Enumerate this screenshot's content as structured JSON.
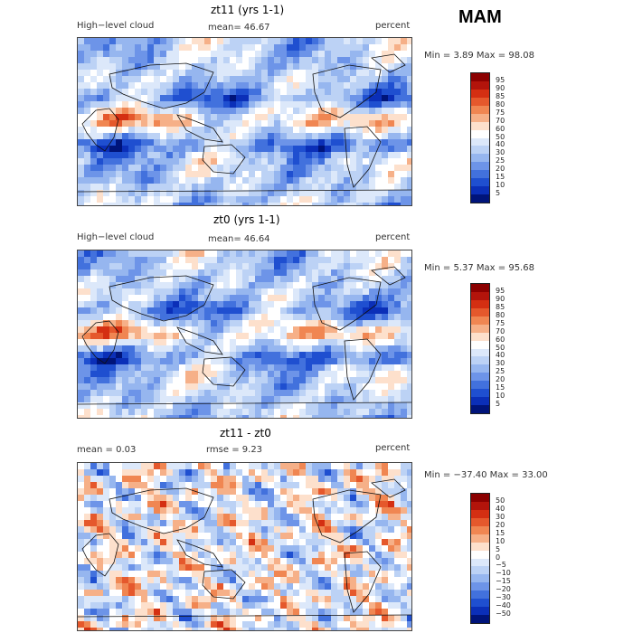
{
  "season": "MAM",
  "chart_data": [
    {
      "type": "heatmap",
      "title": "zt11 (yrs 1-1)",
      "left_label": "High−level cloud",
      "center_label": "mean=  46.67",
      "right_label": "percent",
      "range_label": "Min =    3.89 Max =  98.08",
      "min": 3.89,
      "max": 98.08,
      "mean": 46.67,
      "units": "percent",
      "colorbar_levels": [
        "95",
        "90",
        "85",
        "80",
        "75",
        "70",
        "60",
        "50",
        "40",
        "30",
        "25",
        "20",
        "15",
        "10",
        "5"
      ]
    },
    {
      "type": "heatmap",
      "title": "zt0 (yrs 1-1)",
      "left_label": "High−level cloud",
      "center_label": "mean=  46.64",
      "right_label": "percent",
      "range_label": "Min =    5.37 Max =  95.68",
      "min": 5.37,
      "max": 95.68,
      "mean": 46.64,
      "units": "percent",
      "colorbar_levels": [
        "95",
        "90",
        "85",
        "80",
        "75",
        "70",
        "60",
        "50",
        "40",
        "30",
        "25",
        "20",
        "15",
        "10",
        "5"
      ]
    },
    {
      "type": "heatmap",
      "title": "zt11 - zt0",
      "left_label": "mean =     0.03",
      "center_label": "rmse =    9.23",
      "right_label": "percent",
      "range_label": "Min = −37.40 Max =  33.00",
      "min": -37.4,
      "max": 33.0,
      "mean": 0.03,
      "rmse": 9.23,
      "units": "percent",
      "colorbar_levels": [
        "50",
        "40",
        "30",
        "20",
        "15",
        "10",
        "5",
        "0",
        "−5",
        "−10",
        "−15",
        "−20",
        "−30",
        "−40",
        "−50"
      ]
    }
  ],
  "colors": [
    "#8b0000",
    "#b3140b",
    "#d42f12",
    "#e5582c",
    "#f08652",
    "#f6b088",
    "#fde0cc",
    "#ffffff",
    "#dce8fa",
    "#bcd2f5",
    "#96b6ef",
    "#6d94e8",
    "#4271dd",
    "#1f4fd0",
    "#0b2fb8",
    "#00147a"
  ]
}
